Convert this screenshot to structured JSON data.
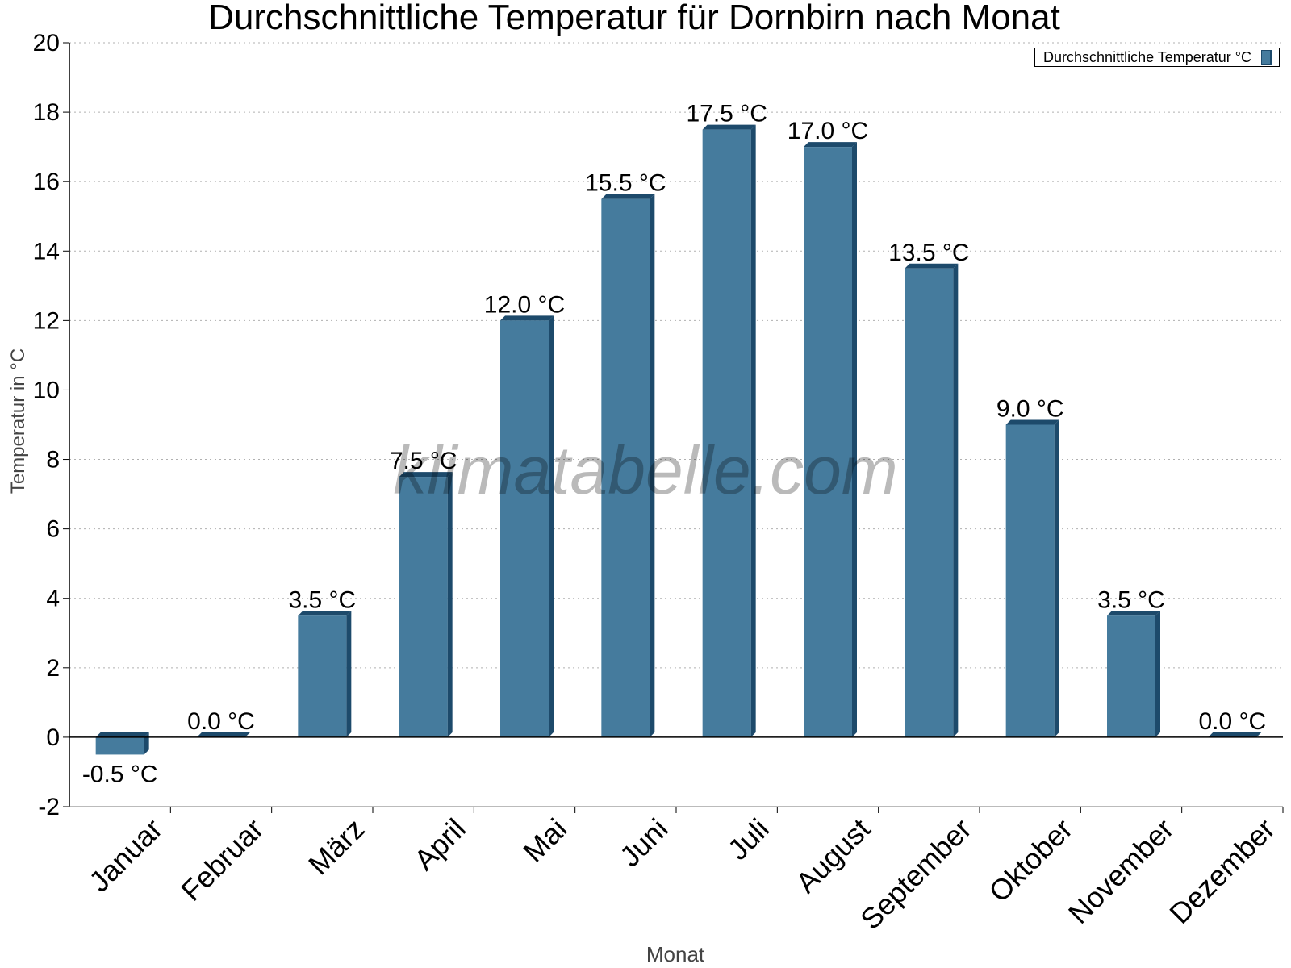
{
  "chart_data": {
    "type": "bar",
    "title": "Durchschnittliche Temperatur für Dornbirn nach Monat",
    "xlabel": "Monat",
    "ylabel": "Temperatur in °C",
    "ylim": [
      -2,
      20
    ],
    "yticks": [
      -2,
      0,
      2,
      4,
      6,
      8,
      10,
      12,
      14,
      16,
      18,
      20
    ],
    "grid": true,
    "legend_position": "top-right",
    "categories": [
      "Januar",
      "Februar",
      "März",
      "April",
      "Mai",
      "Juni",
      "Juli",
      "August",
      "September",
      "Oktober",
      "November",
      "Dezember"
    ],
    "series": [
      {
        "name": "Durchschnittliche Temperatur °C",
        "values": [
          -0.5,
          0.0,
          3.5,
          7.5,
          12.0,
          15.5,
          17.5,
          17.0,
          13.5,
          9.0,
          3.5,
          0.0
        ],
        "labels": [
          "-0.5 °C",
          "0.0 °C",
          "3.5 °C",
          "7.5 °C",
          "12.0 °C",
          "15.5 °C",
          "17.5 °C",
          "17.0 °C",
          "13.5 °C",
          "9.0 °C",
          "3.5 °C",
          "0.0 °C"
        ]
      }
    ],
    "watermark": "klimatabelle.com",
    "colors": {
      "bar": "#457b9d",
      "bar_edge": "#1d4a6b"
    }
  }
}
